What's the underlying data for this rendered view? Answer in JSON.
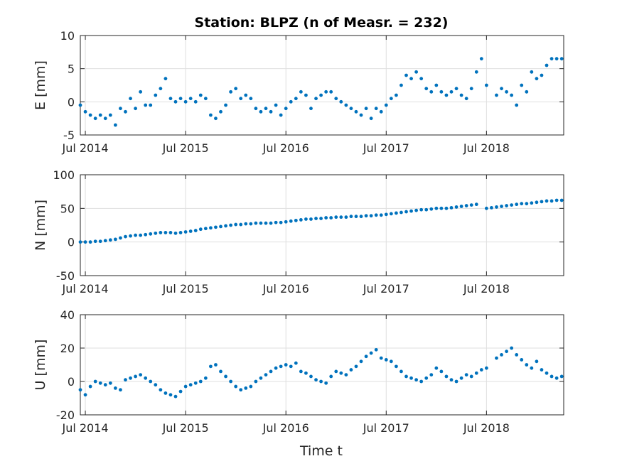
{
  "chart_data": {
    "type": "scatter",
    "title": "Station: BLPZ (n of Measr. = 232)",
    "xlabel": "Time t",
    "marker_color": "#0072BD",
    "x_range": [
      2014.45,
      2019.27
    ],
    "x_ticks": [
      2014.5,
      2015.5,
      2016.5,
      2017.5,
      2018.5
    ],
    "x_tick_labels": [
      "Jul 2014",
      "Jul 2015",
      "Jul 2016",
      "Jul 2017",
      "Jul 2018"
    ],
    "grid": true,
    "panels": [
      {
        "name": "E",
        "ylabel": "E [mm]",
        "ylim": [
          -5,
          10
        ],
        "yticks": [
          -5,
          0,
          5,
          10
        ],
        "ytick_labels": [
          "-5",
          "0",
          "5",
          "10"
        ],
        "x": [
          2014.45,
          2014.5,
          2014.55,
          2014.6,
          2014.65,
          2014.7,
          2014.75,
          2014.8,
          2014.85,
          2014.9,
          2014.95,
          2015.0,
          2015.05,
          2015.1,
          2015.15,
          2015.2,
          2015.25,
          2015.3,
          2015.35,
          2015.4,
          2015.45,
          2015.5,
          2015.55,
          2015.6,
          2015.65,
          2015.7,
          2015.75,
          2015.8,
          2015.85,
          2015.9,
          2015.95,
          2016.0,
          2016.05,
          2016.1,
          2016.15,
          2016.2,
          2016.25,
          2016.3,
          2016.35,
          2016.4,
          2016.45,
          2016.5,
          2016.55,
          2016.6,
          2016.65,
          2016.7,
          2016.75,
          2016.8,
          2016.85,
          2016.9,
          2016.95,
          2017.0,
          2017.05,
          2017.1,
          2017.15,
          2017.2,
          2017.25,
          2017.3,
          2017.35,
          2017.4,
          2017.45,
          2017.5,
          2017.55,
          2017.6,
          2017.65,
          2017.7,
          2017.75,
          2017.8,
          2017.85,
          2017.9,
          2017.95,
          2018.0,
          2018.05,
          2018.1,
          2018.15,
          2018.2,
          2018.25,
          2018.3,
          2018.35,
          2018.4,
          2018.45,
          2018.5,
          2018.6,
          2018.65,
          2018.7,
          2018.75,
          2018.8,
          2018.85,
          2018.9,
          2018.95,
          2019.0,
          2019.05,
          2019.1,
          2019.15,
          2019.2,
          2019.25
        ],
        "y": [
          -0.5,
          -1.5,
          -2.0,
          -2.5,
          -2.0,
          -2.5,
          -2.0,
          -3.5,
          -1.0,
          -1.5,
          0.5,
          -1.0,
          1.5,
          -0.5,
          -0.5,
          1.0,
          2.0,
          3.5,
          0.5,
          0.0,
          0.5,
          0.0,
          0.5,
          0.0,
          1.0,
          0.5,
          -2.0,
          -2.5,
          -1.5,
          -0.5,
          1.5,
          2.0,
          0.5,
          1.0,
          0.5,
          -1.0,
          -1.5,
          -1.0,
          -1.5,
          -0.5,
          -2.0,
          -1.0,
          0.0,
          0.5,
          1.5,
          1.0,
          -1.0,
          0.5,
          1.0,
          1.5,
          1.5,
          0.5,
          0.0,
          -0.5,
          -1.0,
          -1.5,
          -2.0,
          -1.0,
          -2.5,
          -1.0,
          -1.5,
          -0.5,
          0.5,
          1.0,
          2.5,
          4.0,
          3.5,
          4.5,
          3.5,
          2.0,
          1.5,
          2.5,
          1.5,
          1.0,
          1.5,
          2.0,
          1.0,
          0.5,
          2.0,
          4.5,
          6.5,
          2.5,
          1.0,
          2.0,
          1.5,
          1.0,
          -0.5,
          2.5,
          1.5,
          4.5,
          3.5,
          4.0,
          5.5,
          6.5,
          6.5,
          6.5
        ]
      },
      {
        "name": "N",
        "ylabel": "N [mm]",
        "ylim": [
          -50,
          100
        ],
        "yticks": [
          -50,
          0,
          50,
          100
        ],
        "ytick_labels": [
          "-50",
          "0",
          "50",
          "100"
        ],
        "x": [
          2014.45,
          2014.5,
          2014.55,
          2014.6,
          2014.65,
          2014.7,
          2014.75,
          2014.8,
          2014.85,
          2014.9,
          2014.95,
          2015.0,
          2015.05,
          2015.1,
          2015.15,
          2015.2,
          2015.25,
          2015.3,
          2015.35,
          2015.4,
          2015.45,
          2015.5,
          2015.55,
          2015.6,
          2015.65,
          2015.7,
          2015.75,
          2015.8,
          2015.85,
          2015.9,
          2015.95,
          2016.0,
          2016.05,
          2016.1,
          2016.15,
          2016.2,
          2016.25,
          2016.3,
          2016.35,
          2016.4,
          2016.45,
          2016.5,
          2016.55,
          2016.6,
          2016.65,
          2016.7,
          2016.75,
          2016.8,
          2016.85,
          2016.9,
          2016.95,
          2017.0,
          2017.05,
          2017.1,
          2017.15,
          2017.2,
          2017.25,
          2017.3,
          2017.35,
          2017.4,
          2017.45,
          2017.5,
          2017.55,
          2017.6,
          2017.65,
          2017.7,
          2017.75,
          2017.8,
          2017.85,
          2017.9,
          2017.95,
          2018.0,
          2018.05,
          2018.1,
          2018.15,
          2018.2,
          2018.25,
          2018.3,
          2018.35,
          2018.4,
          2018.5,
          2018.55,
          2018.6,
          2018.65,
          2018.7,
          2018.75,
          2018.8,
          2018.85,
          2018.9,
          2018.95,
          2019.0,
          2019.05,
          2019.1,
          2019.15,
          2019.2,
          2019.25
        ],
        "y": [
          0,
          0,
          0,
          1,
          1,
          2,
          3,
          4,
          6,
          8,
          9,
          10,
          10,
          11,
          12,
          13,
          14,
          14,
          14,
          13,
          14,
          15,
          16,
          17,
          19,
          20,
          21,
          22,
          23,
          24,
          25,
          26,
          26,
          27,
          27,
          28,
          28,
          28,
          28,
          29,
          29,
          30,
          31,
          32,
          33,
          34,
          34,
          35,
          35,
          36,
          36,
          37,
          37,
          37,
          38,
          38,
          38,
          39,
          39,
          40,
          40,
          41,
          42,
          43,
          44,
          45,
          46,
          47,
          48,
          48,
          49,
          50,
          50,
          50,
          51,
          52,
          53,
          54,
          55,
          56,
          50,
          51,
          52,
          53,
          54,
          55,
          56,
          57,
          57,
          58,
          59,
          60,
          61,
          61,
          62,
          62
        ]
      },
      {
        "name": "U",
        "ylabel": "U [mm]",
        "ylim": [
          -20,
          40
        ],
        "yticks": [
          -20,
          0,
          20,
          40
        ],
        "ytick_labels": [
          "-20",
          "0",
          "20",
          "40"
        ],
        "x": [
          2014.45,
          2014.5,
          2014.55,
          2014.6,
          2014.65,
          2014.7,
          2014.75,
          2014.8,
          2014.85,
          2014.9,
          2014.95,
          2015.0,
          2015.05,
          2015.1,
          2015.15,
          2015.2,
          2015.25,
          2015.3,
          2015.35,
          2015.4,
          2015.45,
          2015.5,
          2015.55,
          2015.6,
          2015.65,
          2015.7,
          2015.75,
          2015.8,
          2015.85,
          2015.9,
          2015.95,
          2016.0,
          2016.05,
          2016.1,
          2016.15,
          2016.2,
          2016.25,
          2016.3,
          2016.35,
          2016.4,
          2016.45,
          2016.5,
          2016.55,
          2016.6,
          2016.65,
          2016.7,
          2016.75,
          2016.8,
          2016.85,
          2016.9,
          2016.95,
          2017.0,
          2017.05,
          2017.1,
          2017.15,
          2017.2,
          2017.25,
          2017.3,
          2017.35,
          2017.4,
          2017.45,
          2017.5,
          2017.55,
          2017.6,
          2017.65,
          2017.7,
          2017.75,
          2017.8,
          2017.85,
          2017.9,
          2017.95,
          2018.0,
          2018.05,
          2018.1,
          2018.15,
          2018.2,
          2018.25,
          2018.3,
          2018.35,
          2018.4,
          2018.45,
          2018.5,
          2018.6,
          2018.65,
          2018.7,
          2018.75,
          2018.8,
          2018.85,
          2018.9,
          2018.95,
          2019.0,
          2019.05,
          2019.1,
          2019.15,
          2019.2,
          2019.25
        ],
        "y": [
          -5,
          -8,
          -3,
          0,
          -1,
          -2,
          -1,
          -4,
          -5,
          1,
          2,
          3,
          4,
          2,
          0,
          -2,
          -5,
          -7,
          -8,
          -9,
          -6,
          -3,
          -2,
          -1,
          0,
          2,
          9,
          10,
          6,
          3,
          0,
          -3,
          -5,
          -4,
          -3,
          0,
          2,
          4,
          6,
          8,
          9,
          10,
          9,
          11,
          6,
          5,
          3,
          1,
          0,
          -1,
          3,
          6,
          5,
          4,
          7,
          9,
          12,
          15,
          17,
          19,
          14,
          13,
          12,
          9,
          6,
          3,
          2,
          1,
          0,
          2,
          4,
          8,
          6,
          3,
          1,
          0,
          2,
          4,
          3,
          5,
          7,
          8,
          14,
          16,
          18,
          20,
          16,
          13,
          10,
          8,
          12,
          7,
          5,
          3,
          2,
          3
        ]
      }
    ]
  }
}
